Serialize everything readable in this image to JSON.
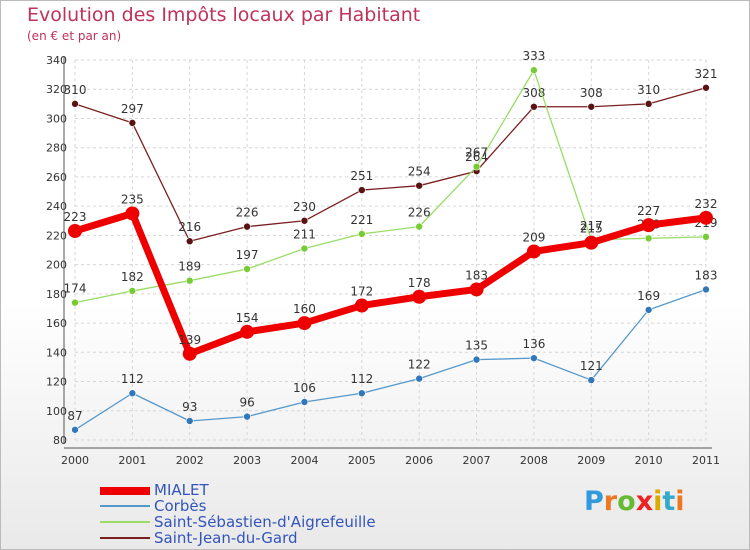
{
  "chart_data": {
    "type": "line",
    "title": "Evolution des Impôts locaux par Habitant",
    "subtitle": "(en € et par an)",
    "categories": [
      "2000",
      "2001",
      "2002",
      "2003",
      "2004",
      "2005",
      "2006",
      "2007",
      "2008",
      "2009",
      "2010",
      "2011"
    ],
    "ylim": [
      80,
      340
    ],
    "yticks": [
      80,
      100,
      120,
      140,
      160,
      180,
      200,
      220,
      240,
      260,
      280,
      300,
      320,
      340
    ],
    "series": [
      {
        "name": "Saint-Jean-du-Gard",
        "color": "#7a1f1f",
        "marker": "#5a1212",
        "width": 1.3,
        "values": [
          310,
          297,
          216,
          226,
          230,
          251,
          254,
          264,
          308,
          308,
          310,
          321
        ],
        "labels": [
          "310",
          "297",
          "216",
          "226",
          "230",
          "251",
          "254",
          "264",
          "308",
          "308",
          "310",
          "321"
        ]
      },
      {
        "name": "Saint-Sébastien-d'Aigrefeuille",
        "color": "#99dd66",
        "marker": "#77cc33",
        "width": 1.3,
        "values": [
          174,
          182,
          189,
          197,
          211,
          221,
          226,
          267,
          333,
          217,
          218,
          219
        ],
        "labels": [
          "174",
          "182",
          "189",
          "197",
          "211",
          "221",
          "226",
          "267",
          "333",
          "217",
          "218",
          "219"
        ]
      },
      {
        "name": "Corbès",
        "color": "#5599cc",
        "marker": "#3377bb",
        "width": 1.3,
        "values": [
          87,
          112,
          93,
          96,
          106,
          112,
          122,
          135,
          136,
          121,
          169,
          183
        ],
        "labels": [
          "87",
          "112",
          "93",
          "96",
          "106",
          "112",
          "122",
          "135",
          "136",
          "121",
          "169",
          "183"
        ]
      },
      {
        "name": "MIALET",
        "color": "#ee0000",
        "marker": "#ee0000",
        "width": 7,
        "values": [
          223,
          235,
          139,
          154,
          160,
          172,
          178,
          183,
          209,
          215,
          227,
          232
        ],
        "labels": [
          "223",
          "235",
          "139",
          "154",
          "160",
          "172",
          "178",
          "183",
          "209",
          "215",
          "227",
          "232"
        ]
      }
    ],
    "legend": [
      "MIALET",
      "Corbès",
      "Saint-Sébastien-d'Aigrefeuille",
      "Saint-Jean-du-Gard"
    ]
  },
  "logo": {
    "letters": [
      "P",
      "r",
      "o",
      "x",
      "i",
      "t",
      "i"
    ],
    "colors": [
      "#3399dd",
      "#ee7722",
      "#66bb33",
      "#ee2222",
      "#ddaa00",
      "#33aacc",
      "#ee7722"
    ]
  }
}
